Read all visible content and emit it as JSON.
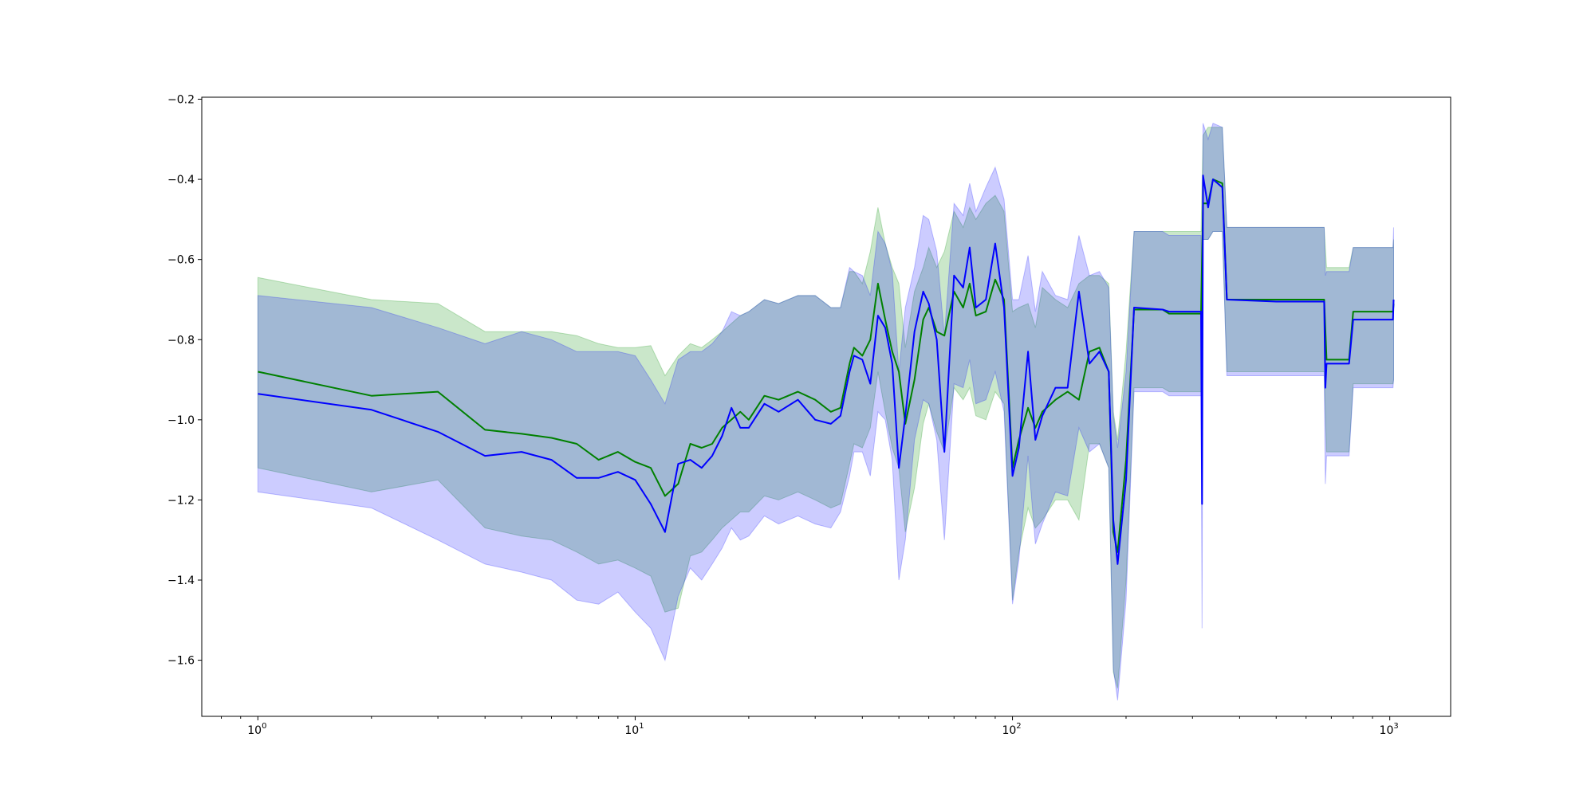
{
  "chart_data": {
    "type": "line",
    "title": "",
    "xlabel": "",
    "ylabel": "",
    "xscale": "log",
    "xlim": [
      0.71,
      1450
    ],
    "ylim": [
      -1.74,
      -0.195
    ],
    "grid": false,
    "legend": "none",
    "x_ticks": [
      {
        "value": 1,
        "base": "10",
        "exp": "0"
      },
      {
        "value": 10,
        "base": "10",
        "exp": "1"
      },
      {
        "value": 100,
        "base": "10",
        "exp": "2"
      },
      {
        "value": 1000,
        "base": "10",
        "exp": "3"
      }
    ],
    "y_ticks": [
      {
        "value": -0.2,
        "label": "−0.2"
      },
      {
        "value": -0.4,
        "label": "−0.4"
      },
      {
        "value": -0.6,
        "label": "−0.6"
      },
      {
        "value": -0.8,
        "label": "−0.8"
      },
      {
        "value": -1.0,
        "label": "−1.0"
      },
      {
        "value": -1.2,
        "label": "−1.2"
      },
      {
        "value": -1.4,
        "label": "−1.4"
      },
      {
        "value": -1.6,
        "label": "−1.6"
      }
    ],
    "series": [
      {
        "color": "#008000",
        "band_color": "#2ca02c",
        "band_opacity": 0.25,
        "points": [
          [
            1,
            -0.88,
            -1.12,
            -0.645
          ],
          [
            2,
            -0.94,
            -1.18,
            -0.7
          ],
          [
            3,
            -0.93,
            -1.15,
            -0.71
          ],
          [
            4,
            -1.025,
            -1.27,
            -0.78
          ],
          [
            5,
            -1.035,
            -1.29,
            -0.78
          ],
          [
            6,
            -1.045,
            -1.3,
            -0.78
          ],
          [
            7,
            -1.06,
            -1.33,
            -0.79
          ],
          [
            8,
            -1.1,
            -1.36,
            -0.81
          ],
          [
            9,
            -1.08,
            -1.35,
            -0.82
          ],
          [
            10,
            -1.105,
            -1.37,
            -0.82
          ],
          [
            11,
            -1.12,
            -1.39,
            -0.815
          ],
          [
            12,
            -1.19,
            -1.48,
            -0.89
          ],
          [
            13,
            -1.16,
            -1.47,
            -0.84
          ],
          [
            14,
            -1.06,
            -1.34,
            -0.81
          ],
          [
            15,
            -1.07,
            -1.33,
            -0.82
          ],
          [
            16,
            -1.06,
            -1.3,
            -0.8
          ],
          [
            17,
            -1.02,
            -1.27,
            -0.78
          ],
          [
            19,
            -0.98,
            -1.23,
            -0.74
          ],
          [
            20,
            -1.0,
            -1.23,
            -0.73
          ],
          [
            22,
            -0.94,
            -1.19,
            -0.7
          ],
          [
            24,
            -0.95,
            -1.2,
            -0.71
          ],
          [
            27,
            -0.93,
            -1.18,
            -0.69
          ],
          [
            30,
            -0.95,
            -1.2,
            -0.69
          ],
          [
            33,
            -0.98,
            -1.22,
            -0.72
          ],
          [
            35,
            -0.97,
            -1.21,
            -0.72
          ],
          [
            37,
            -0.86,
            -1.11,
            -0.63
          ],
          [
            38,
            -0.82,
            -1.06,
            -0.63
          ],
          [
            40,
            -0.84,
            -1.07,
            -0.66
          ],
          [
            42,
            -0.8,
            -1.02,
            -0.58
          ],
          [
            44,
            -0.66,
            -0.88,
            -0.47
          ],
          [
            46,
            -0.75,
            -0.98,
            -0.56
          ],
          [
            48,
            -0.83,
            -1.07,
            -0.62
          ],
          [
            50,
            -0.88,
            -1.12,
            -0.66
          ],
          [
            52,
            -1.01,
            -1.28,
            -0.82
          ],
          [
            55,
            -0.9,
            -1.17,
            -0.68
          ],
          [
            58,
            -0.75,
            -1.01,
            -0.62
          ],
          [
            60,
            -0.72,
            -0.96,
            -0.57
          ],
          [
            63,
            -0.78,
            -1.03,
            -0.62
          ],
          [
            66,
            -0.79,
            -1.08,
            -0.58
          ],
          [
            70,
            -0.68,
            -0.92,
            -0.48
          ],
          [
            74,
            -0.72,
            -0.95,
            -0.52
          ],
          [
            77,
            -0.66,
            -0.92,
            -0.47
          ],
          [
            80,
            -0.74,
            -0.99,
            -0.5
          ],
          [
            85,
            -0.73,
            -1.0,
            -0.46
          ],
          [
            90,
            -0.65,
            -0.93,
            -0.44
          ],
          [
            95,
            -0.7,
            -0.96,
            -0.48
          ],
          [
            100,
            -1.12,
            -1.45,
            -0.73
          ],
          [
            104,
            -1.05,
            -1.33,
            -0.72
          ],
          [
            110,
            -0.97,
            -1.22,
            -0.71
          ],
          [
            115,
            -1.02,
            -1.27,
            -0.77
          ],
          [
            120,
            -0.98,
            -1.25,
            -0.67
          ],
          [
            130,
            -0.95,
            -1.2,
            -0.7
          ],
          [
            140,
            -0.93,
            -1.2,
            -0.72
          ],
          [
            150,
            -0.95,
            -1.25,
            -0.66
          ],
          [
            160,
            -0.83,
            -1.06,
            -0.64
          ],
          [
            170,
            -0.82,
            -1.06,
            -0.64
          ],
          [
            180,
            -0.88,
            -1.12,
            -0.66
          ],
          [
            185,
            -1.28,
            -1.63,
            -0.98
          ],
          [
            190,
            -1.33,
            -1.67,
            -1.05
          ],
          [
            200,
            -1.1,
            -1.4,
            -0.83
          ],
          [
            210,
            -0.725,
            -0.92,
            -0.53
          ],
          [
            250,
            -0.725,
            -0.92,
            -0.53
          ],
          [
            260,
            -0.735,
            -0.93,
            -0.53
          ],
          [
            316,
            -0.735,
            -0.93,
            -0.53
          ],
          [
            320,
            -0.46,
            -0.55,
            -0.29
          ],
          [
            330,
            -0.46,
            -0.55,
            -0.27
          ],
          [
            340,
            -0.4,
            -0.53,
            -0.27
          ],
          [
            360,
            -0.41,
            -0.53,
            -0.27
          ],
          [
            370,
            -0.7,
            -0.88,
            -0.52
          ],
          [
            500,
            -0.7,
            -0.88,
            -0.52
          ],
          [
            670,
            -0.7,
            -0.88,
            -0.52
          ],
          [
            680,
            -0.85,
            -1.08,
            -0.62
          ],
          [
            780,
            -0.85,
            -1.08,
            -0.62
          ],
          [
            800,
            -0.73,
            -0.91,
            -0.57
          ],
          [
            1020,
            -0.73,
            -0.91,
            -0.57
          ],
          [
            1024,
            -0.71,
            -0.9,
            -0.55
          ]
        ]
      },
      {
        "color": "#0000ff",
        "band_color": "#0000ff",
        "band_opacity": 0.2,
        "points": [
          [
            1,
            -0.935,
            -1.18,
            -0.69
          ],
          [
            2,
            -0.975,
            -1.22,
            -0.72
          ],
          [
            3,
            -1.03,
            -1.3,
            -0.77
          ],
          [
            4,
            -1.09,
            -1.36,
            -0.81
          ],
          [
            5,
            -1.08,
            -1.38,
            -0.78
          ],
          [
            6,
            -1.1,
            -1.4,
            -0.8
          ],
          [
            7,
            -1.145,
            -1.45,
            -0.83
          ],
          [
            8,
            -1.145,
            -1.46,
            -0.83
          ],
          [
            9,
            -1.13,
            -1.43,
            -0.83
          ],
          [
            10,
            -1.15,
            -1.48,
            -0.84
          ],
          [
            11,
            -1.21,
            -1.52,
            -0.9
          ],
          [
            12,
            -1.28,
            -1.6,
            -0.96
          ],
          [
            13,
            -1.11,
            -1.44,
            -0.85
          ],
          [
            14,
            -1.1,
            -1.37,
            -0.83
          ],
          [
            15,
            -1.12,
            -1.4,
            -0.83
          ],
          [
            16,
            -1.09,
            -1.36,
            -0.81
          ],
          [
            17,
            -1.04,
            -1.32,
            -0.78
          ],
          [
            18,
            -0.97,
            -1.27,
            -0.73
          ],
          [
            19,
            -1.02,
            -1.3,
            -0.74
          ],
          [
            20,
            -1.02,
            -1.29,
            -0.73
          ],
          [
            22,
            -0.96,
            -1.24,
            -0.7
          ],
          [
            24,
            -0.98,
            -1.26,
            -0.71
          ],
          [
            27,
            -0.95,
            -1.24,
            -0.69
          ],
          [
            30,
            -1.0,
            -1.26,
            -0.69
          ],
          [
            33,
            -1.01,
            -1.27,
            -0.72
          ],
          [
            35,
            -0.99,
            -1.23,
            -0.72
          ],
          [
            37,
            -0.88,
            -1.14,
            -0.62
          ],
          [
            38,
            -0.84,
            -1.08,
            -0.63
          ],
          [
            40,
            -0.85,
            -1.08,
            -0.64
          ],
          [
            42,
            -0.91,
            -1.14,
            -0.69
          ],
          [
            44,
            -0.74,
            -0.98,
            -0.53
          ],
          [
            46,
            -0.77,
            -1.0,
            -0.56
          ],
          [
            48,
            -0.86,
            -1.1,
            -0.63
          ],
          [
            50,
            -1.12,
            -1.4,
            -0.88
          ],
          [
            52,
            -0.99,
            -1.3,
            -0.72
          ],
          [
            55,
            -0.78,
            -1.05,
            -0.62
          ],
          [
            58,
            -0.68,
            -0.95,
            -0.49
          ],
          [
            60,
            -0.71,
            -0.96,
            -0.5
          ],
          [
            63,
            -0.8,
            -1.05,
            -0.58
          ],
          [
            66,
            -1.08,
            -1.3,
            -0.79
          ],
          [
            70,
            -0.64,
            -0.91,
            -0.46
          ],
          [
            74,
            -0.67,
            -0.92,
            -0.49
          ],
          [
            77,
            -0.57,
            -0.85,
            -0.41
          ],
          [
            80,
            -0.72,
            -0.96,
            -0.48
          ],
          [
            85,
            -0.7,
            -0.95,
            -0.42
          ],
          [
            90,
            -0.56,
            -0.88,
            -0.37
          ],
          [
            95,
            -0.72,
            -0.98,
            -0.45
          ],
          [
            100,
            -1.14,
            -1.46,
            -0.7
          ],
          [
            104,
            -1.07,
            -1.35,
            -0.7
          ],
          [
            110,
            -0.83,
            -1.09,
            -0.59
          ],
          [
            115,
            -1.05,
            -1.31,
            -0.73
          ],
          [
            120,
            -0.99,
            -1.26,
            -0.63
          ],
          [
            130,
            -0.92,
            -1.18,
            -0.69
          ],
          [
            140,
            -0.92,
            -1.19,
            -0.7
          ],
          [
            150,
            -0.68,
            -1.02,
            -0.54
          ],
          [
            160,
            -0.86,
            -1.08,
            -0.64
          ],
          [
            170,
            -0.83,
            -1.06,
            -0.63
          ],
          [
            180,
            -0.88,
            -1.12,
            -0.67
          ],
          [
            185,
            -1.25,
            -1.62,
            -0.99
          ],
          [
            190,
            -1.36,
            -1.7,
            -1.07
          ],
          [
            200,
            -1.15,
            -1.45,
            -0.88
          ],
          [
            210,
            -0.72,
            -0.93,
            -0.53
          ],
          [
            250,
            -0.725,
            -0.93,
            -0.53
          ],
          [
            260,
            -0.73,
            -0.94,
            -0.54
          ],
          [
            316,
            -0.73,
            -0.94,
            -0.54
          ],
          [
            318,
            -1.21,
            -1.52,
            -0.9
          ],
          [
            320,
            -0.39,
            -0.55,
            -0.26
          ],
          [
            330,
            -0.47,
            -0.55,
            -0.3
          ],
          [
            340,
            -0.4,
            -0.53,
            -0.26
          ],
          [
            360,
            -0.42,
            -0.53,
            -0.27
          ],
          [
            370,
            -0.7,
            -0.89,
            -0.52
          ],
          [
            500,
            -0.705,
            -0.89,
            -0.52
          ],
          [
            670,
            -0.705,
            -0.89,
            -0.52
          ],
          [
            675,
            -0.92,
            -1.16,
            -0.64
          ],
          [
            680,
            -0.86,
            -1.09,
            -0.63
          ],
          [
            780,
            -0.86,
            -1.09,
            -0.63
          ],
          [
            800,
            -0.75,
            -0.92,
            -0.57
          ],
          [
            1020,
            -0.75,
            -0.92,
            -0.57
          ],
          [
            1024,
            -0.7,
            -0.9,
            -0.52
          ]
        ]
      }
    ]
  }
}
